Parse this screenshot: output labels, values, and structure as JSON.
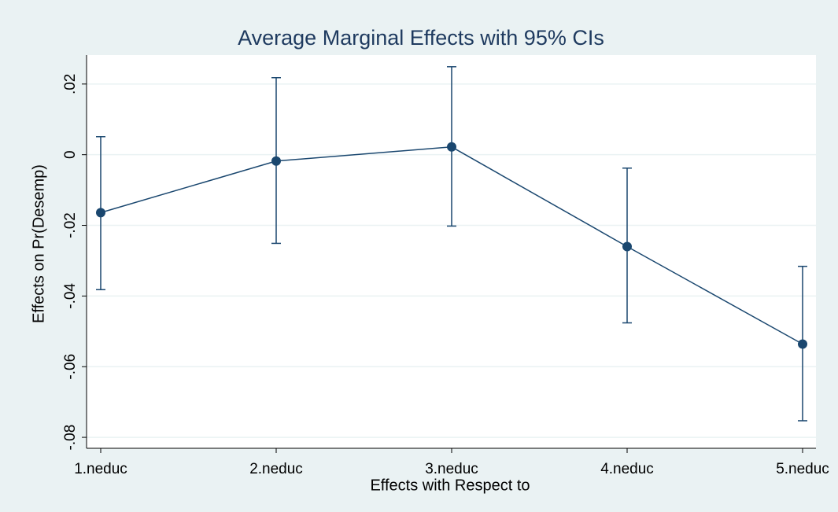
{
  "chart_data": {
    "type": "line",
    "title": "Average Marginal Effects with 95% CIs",
    "x_label": "Effects with Respect to",
    "y_label": "Effects on Pr(Desemp)",
    "categories": [
      "1.neduc",
      "2.neduc",
      "3.neduc",
      "4.neduc",
      "5.neduc"
    ],
    "series": [
      {
        "color": "#1a476f",
        "values": [
          -0.0164,
          -0.0018,
          0.0022,
          -0.026,
          -0.0536
        ],
        "ci_low": [
          -0.0382,
          -0.0251,
          -0.0202,
          -0.0476,
          -0.0753
        ],
        "ci_high": [
          0.0051,
          0.0218,
          0.0249,
          -0.0038,
          -0.0316
        ]
      }
    ],
    "ylim": [
      -0.0831,
      0.0282
    ],
    "yticks": [
      {
        "value": -0.08,
        "label": "-.08"
      },
      {
        "value": -0.06,
        "label": "-.06"
      },
      {
        "value": -0.04,
        "label": "-.04"
      },
      {
        "value": -0.02,
        "label": "-.02"
      },
      0,
      {
        "value": 0.02,
        "label": ".02"
      }
    ],
    "grid": true
  }
}
